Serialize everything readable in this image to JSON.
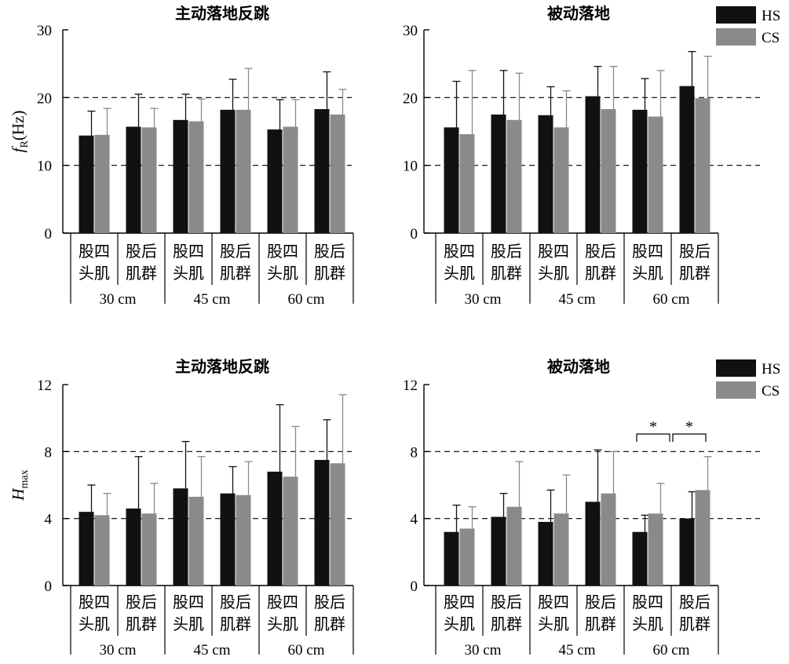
{
  "legend": [
    {
      "name": "HS",
      "color": "#111111"
    },
    {
      "name": "CS",
      "color": "#8a8a8a"
    }
  ],
  "chart_data": [
    {
      "type": "bar",
      "title": "主动落地反跳",
      "ylabel": "fR(Hz)",
      "ylabel_main": "f",
      "ylabel_sub": "R",
      "ylabel_unit": "(Hz)",
      "ylim": [
        0,
        30
      ],
      "yticks": [
        "0",
        "10",
        "20",
        "30"
      ],
      "ytick_values": [
        0,
        10,
        20,
        30
      ],
      "dashed_gridlines": [
        10,
        20
      ],
      "categories": [
        {
          "line1": "股四",
          "line2": "头肌"
        },
        {
          "line1": "股后",
          "line2": "肌群"
        },
        {
          "line1": "股四",
          "line2": "头肌"
        },
        {
          "line1": "股后",
          "line2": "肌群"
        },
        {
          "line1": "股四",
          "line2": "头肌"
        },
        {
          "line1": "股后",
          "line2": "肌群"
        }
      ],
      "groups": [
        "30 cm",
        "45 cm",
        "60 cm"
      ],
      "series": [
        {
          "name": "HS",
          "values": [
            14.4,
            15.7,
            16.7,
            18.2,
            15.3,
            18.3
          ],
          "errors": [
            3.6,
            4.8,
            3.8,
            4.5,
            4.4,
            5.5
          ]
        },
        {
          "name": "CS",
          "values": [
            14.5,
            15.6,
            16.5,
            18.2,
            15.7,
            17.5
          ],
          "errors": [
            3.9,
            2.8,
            3.3,
            6.1,
            4.0,
            3.7
          ]
        }
      ],
      "significance": []
    },
    {
      "type": "bar",
      "title": "被动落地",
      "ylim": [
        0,
        30
      ],
      "yticks": [
        "0",
        "10",
        "20",
        "30"
      ],
      "ytick_values": [
        0,
        10,
        20,
        30
      ],
      "dashed_gridlines": [
        10,
        20
      ],
      "categories": [
        {
          "line1": "股四",
          "line2": "头肌"
        },
        {
          "line1": "股后",
          "line2": "肌群"
        },
        {
          "line1": "股四",
          "line2": "头肌"
        },
        {
          "line1": "股后",
          "line2": "肌群"
        },
        {
          "line1": "股四",
          "line2": "头肌"
        },
        {
          "line1": "股后",
          "line2": "肌群"
        }
      ],
      "groups": [
        "30 cm",
        "45 cm",
        "60 cm"
      ],
      "series": [
        {
          "name": "HS",
          "values": [
            15.6,
            17.5,
            17.4,
            20.2,
            18.2,
            21.7
          ],
          "errors": [
            6.8,
            6.5,
            4.2,
            4.4,
            4.6,
            5.1
          ]
        },
        {
          "name": "CS",
          "values": [
            14.6,
            16.7,
            15.6,
            18.3,
            17.2,
            19.9
          ],
          "errors": [
            9.4,
            6.9,
            5.4,
            6.3,
            6.8,
            6.2
          ]
        }
      ],
      "significance": []
    },
    {
      "type": "bar",
      "title": "主动落地反跳",
      "ylabel": "Hmax",
      "ylabel_main": "H",
      "ylabel_sub": "max",
      "ylabel_unit": "",
      "ylim": [
        0,
        12
      ],
      "yticks": [
        "0",
        "4",
        "8",
        "12"
      ],
      "ytick_values": [
        0,
        4,
        8,
        12
      ],
      "dashed_gridlines": [
        4,
        8
      ],
      "categories": [
        {
          "line1": "股四",
          "line2": "头肌"
        },
        {
          "line1": "股后",
          "line2": "肌群"
        },
        {
          "line1": "股四",
          "line2": "头肌"
        },
        {
          "line1": "股后",
          "line2": "肌群"
        },
        {
          "line1": "股四",
          "line2": "头肌"
        },
        {
          "line1": "股后",
          "line2": "肌群"
        }
      ],
      "groups": [
        "30 cm",
        "45 cm",
        "60 cm"
      ],
      "series": [
        {
          "name": "HS",
          "values": [
            4.4,
            4.6,
            5.8,
            5.5,
            6.8,
            7.5
          ],
          "errors": [
            1.6,
            3.1,
            2.8,
            1.6,
            4.0,
            2.4
          ]
        },
        {
          "name": "CS",
          "values": [
            4.2,
            4.3,
            5.3,
            5.4,
            6.5,
            7.3
          ],
          "errors": [
            1.3,
            1.8,
            2.4,
            2.0,
            3.0,
            4.1
          ]
        }
      ],
      "significance": []
    },
    {
      "type": "bar",
      "title": "被动落地",
      "ylim": [
        0,
        12
      ],
      "yticks": [
        "0",
        "4",
        "8",
        "12"
      ],
      "ytick_values": [
        0,
        4,
        8,
        12
      ],
      "dashed_gridlines": [
        4,
        8
      ],
      "categories": [
        {
          "line1": "股四",
          "line2": "头肌"
        },
        {
          "line1": "股后",
          "line2": "肌群"
        },
        {
          "line1": "股四",
          "line2": "头肌"
        },
        {
          "line1": "股后",
          "line2": "肌群"
        },
        {
          "line1": "股四",
          "line2": "头肌"
        },
        {
          "line1": "股后",
          "line2": "肌群"
        }
      ],
      "groups": [
        "30 cm",
        "45 cm",
        "60 cm"
      ],
      "series": [
        {
          "name": "HS",
          "values": [
            3.2,
            4.1,
            3.8,
            5.0,
            3.2,
            4.0
          ],
          "errors": [
            1.6,
            1.4,
            1.9,
            3.1,
            1.0,
            1.6
          ]
        },
        {
          "name": "CS",
          "values": [
            3.4,
            4.7,
            4.3,
            5.5,
            4.3,
            5.7
          ],
          "errors": [
            1.3,
            2.7,
            2.3,
            2.5,
            1.8,
            2.0
          ]
        }
      ],
      "significance": [
        {
          "label": "*",
          "from_category": 4,
          "to_category": 5,
          "part": "left"
        },
        {
          "label": "*",
          "from_category": 4,
          "to_category": 5,
          "part": "right"
        }
      ]
    }
  ]
}
